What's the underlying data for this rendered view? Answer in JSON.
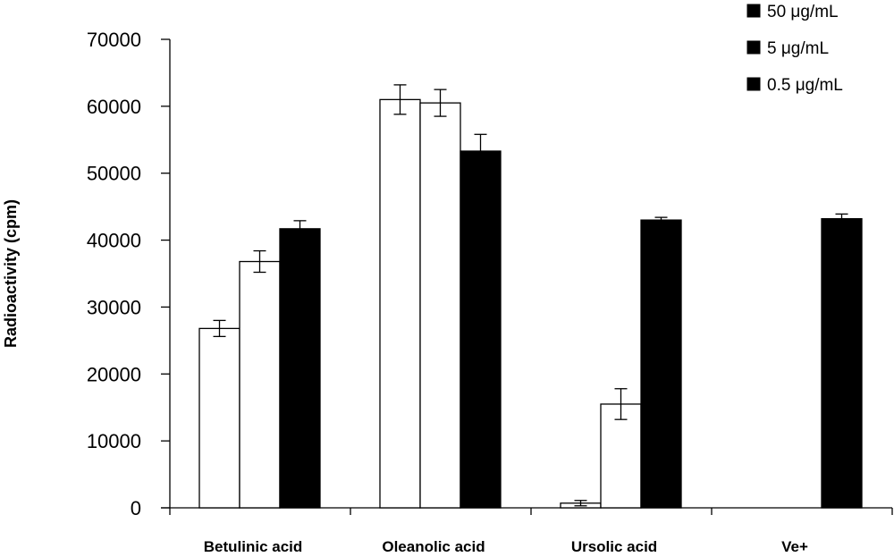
{
  "chart_data": {
    "type": "bar",
    "title": "",
    "xlabel": "",
    "ylabel": "Radioactivity (cpm)",
    "ylim": [
      0,
      70000
    ],
    "yticks": [
      0,
      10000,
      20000,
      30000,
      40000,
      50000,
      60000,
      70000
    ],
    "ytick_labels": [
      "0",
      "10000",
      "20000",
      "30000",
      "40000",
      "50000",
      "60000",
      "70000"
    ],
    "grid": false,
    "legend_position": "top-right",
    "categories": [
      "Betulinic acid",
      "Oleanolic acid",
      "Ursolic acid",
      "Ve+"
    ],
    "series": [
      {
        "name": "50 μg/mL",
        "color": "#ffffff",
        "values": [
          26800,
          61000,
          700,
          null
        ],
        "errors": [
          1200,
          2200,
          400,
          null
        ]
      },
      {
        "name": "5 μg/mL",
        "color": "#ffffff",
        "values": [
          36800,
          60500,
          15500,
          null
        ],
        "errors": [
          1600,
          2000,
          2300,
          null
        ]
      },
      {
        "name": "0.5 μg/mL",
        "color": "#000000",
        "values": [
          41700,
          53300,
          43000,
          43200
        ],
        "errors": [
          1200,
          2500,
          400,
          700
        ]
      }
    ],
    "legend_marker_color": "#000000"
  }
}
